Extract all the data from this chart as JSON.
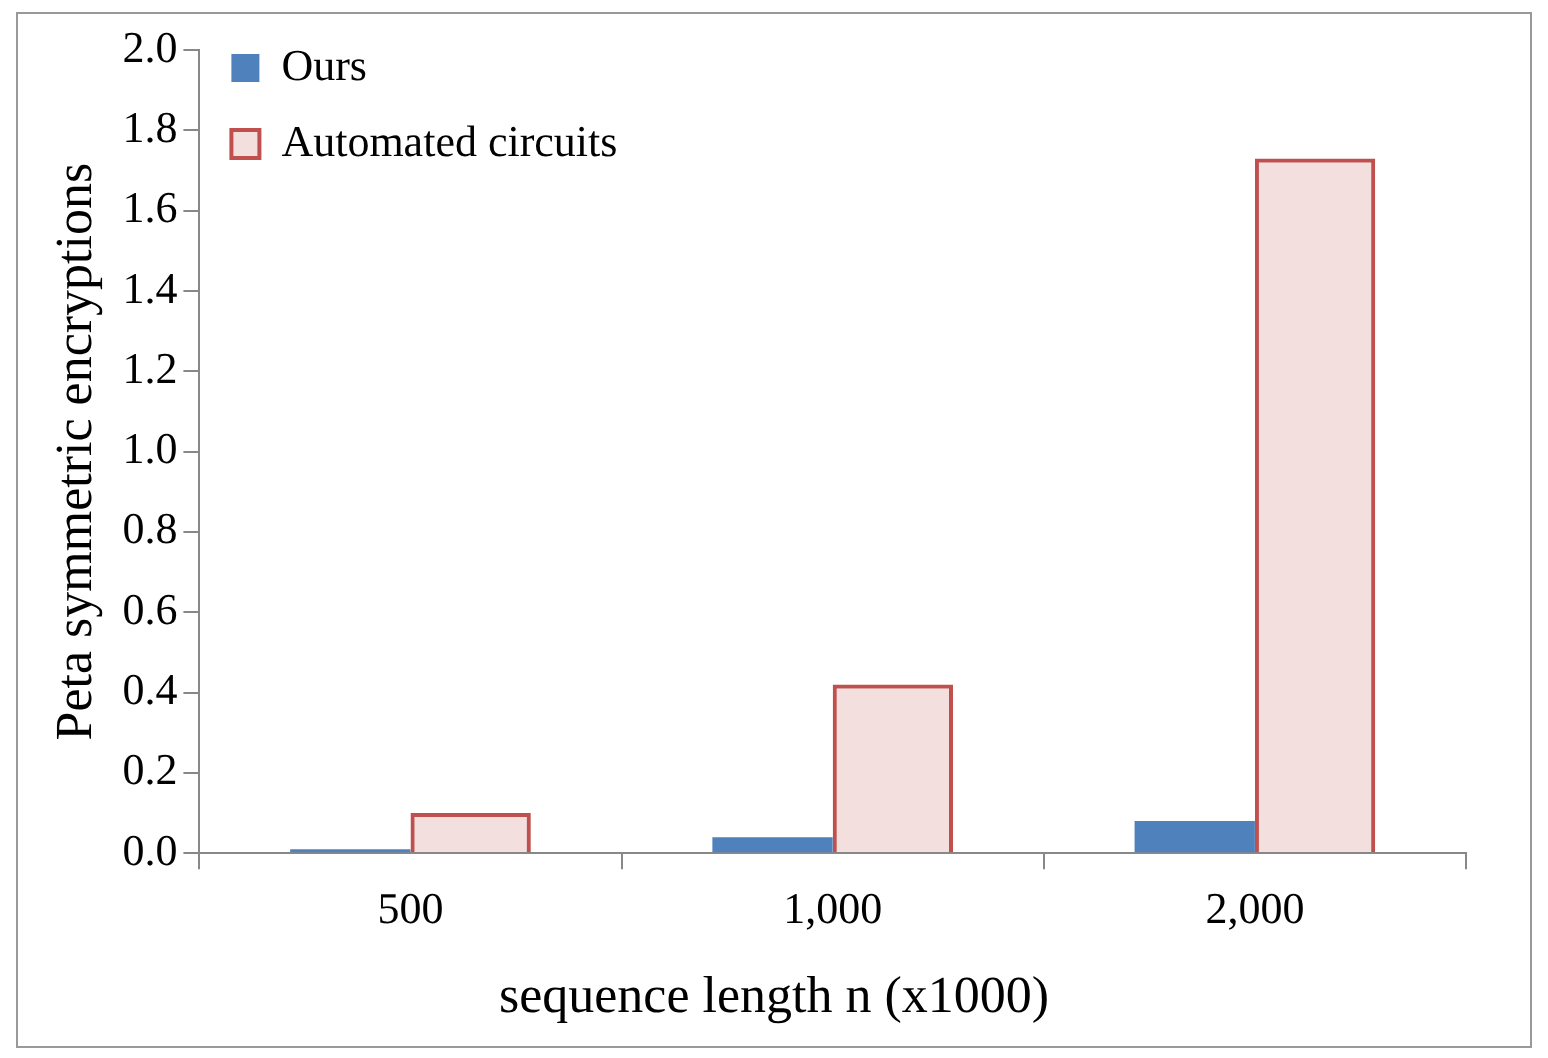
{
  "chart_data": {
    "type": "bar",
    "xlabel": "sequence length n (x1000)",
    "ylabel": "Peta symmetric encryptions",
    "categories": [
      "500",
      "1,000",
      "2,000"
    ],
    "series": [
      {
        "name": "Ours",
        "color": "#4f81bd",
        "values": [
          0.01,
          0.04,
          0.08
        ]
      },
      {
        "name": "Automated circuits",
        "color": "#c0504d",
        "values": [
          0.1,
          0.42,
          1.73
        ]
      }
    ],
    "ylim": [
      0,
      2.0
    ],
    "yticks": [
      {
        "value": 0,
        "label": "0.0"
      },
      {
        "value": 0.2,
        "label": "0.2"
      },
      {
        "value": 0.4,
        "label": "0.4"
      },
      {
        "value": 0.6,
        "label": "0.6"
      },
      {
        "value": 0.8,
        "label": "0.8"
      },
      {
        "value": 1.0,
        "label": "1.0"
      },
      {
        "value": 1.2,
        "label": "1.2"
      },
      {
        "value": 1.4,
        "label": "1.4"
      },
      {
        "value": 1.6,
        "label": "1.6"
      },
      {
        "value": 1.8,
        "label": "1.8"
      },
      {
        "value": 2.0,
        "label": "2.0"
      }
    ],
    "grid": false,
    "legend": "top left"
  }
}
